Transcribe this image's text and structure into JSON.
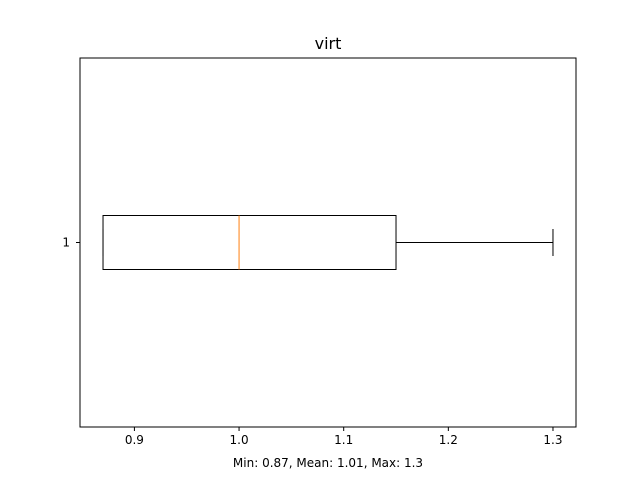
{
  "chart_data": {
    "type": "boxplot",
    "orientation": "horizontal",
    "title": "virt",
    "xlabel": "Min: 0.87, Mean: 1.01, Max: 1.3",
    "ylabel": "",
    "xlim": [
      0.848,
      1.322
    ],
    "xticks": [
      0.9,
      1.0,
      1.1,
      1.2,
      1.3
    ],
    "xtick_labels": [
      "0.9",
      "1.0",
      "1.1",
      "1.2",
      "1.3"
    ],
    "yticks": [
      1
    ],
    "ytick_labels": [
      "1"
    ],
    "grid": false,
    "boxes": [
      {
        "position": 1,
        "whisker_low": 0.87,
        "q1": 0.87,
        "median": 1.0,
        "q3": 1.15,
        "whisker_high": 1.3
      }
    ],
    "colors": {
      "box": "#000000",
      "median": "#ff7f0e",
      "axes": "#000000",
      "background": "#ffffff"
    }
  }
}
